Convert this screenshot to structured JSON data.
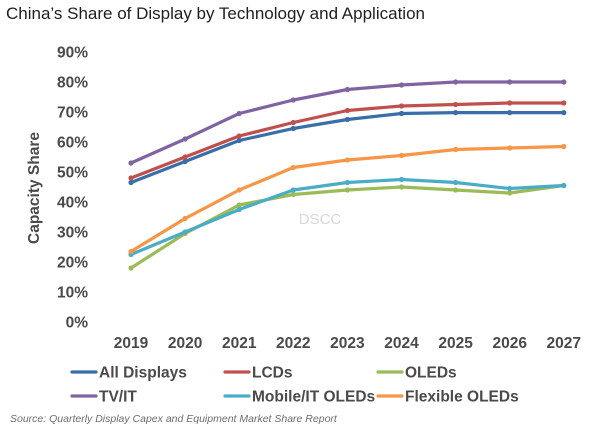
{
  "chart_data": {
    "type": "line",
    "title": "China’s Share of Display by Technology and Application",
    "ylabel": "Capacity Share",
    "xlabel": "",
    "categories": [
      "2019",
      "2020",
      "2021",
      "2022",
      "2023",
      "2024",
      "2025",
      "2026",
      "2027"
    ],
    "ylim": [
      0,
      90
    ],
    "yticks": [
      "0%",
      "10%",
      "20%",
      "30%",
      "40%",
      "50%",
      "60%",
      "70%",
      "80%",
      "90%"
    ],
    "grid": false,
    "legend_position": "bottom",
    "watermark": "DSCC",
    "source": "Source: Quarterly Display Capex and Equipment Market Share Report",
    "series": [
      {
        "name": "All Displays",
        "color": "#3a6ea8",
        "values": [
          46.5,
          53.5,
          60.5,
          64.5,
          67.5,
          69.5,
          69.8,
          69.8,
          69.8
        ]
      },
      {
        "name": "LCDs",
        "color": "#c0504d",
        "values": [
          48,
          55,
          62,
          66.5,
          70.5,
          72,
          72.5,
          73,
          73
        ]
      },
      {
        "name": "OLEDs",
        "color": "#9bbb59",
        "values": [
          18,
          29.5,
          39,
          42.5,
          44,
          45,
          44,
          43,
          45.5
        ]
      },
      {
        "name": "TV/IT",
        "color": "#8064a2",
        "values": [
          53,
          61,
          69.5,
          74,
          77.5,
          79,
          80,
          80,
          80
        ]
      },
      {
        "name": "Mobile/IT OLEDs",
        "color": "#4bacc6",
        "values": [
          22.5,
          30,
          37.5,
          44,
          46.5,
          47.5,
          46.5,
          44.5,
          45.5
        ]
      },
      {
        "name": "Flexible OLEDs",
        "color": "#f79646",
        "values": [
          23.5,
          34.5,
          44,
          51.5,
          54,
          55.5,
          57.5,
          58,
          58.5
        ]
      }
    ]
  }
}
